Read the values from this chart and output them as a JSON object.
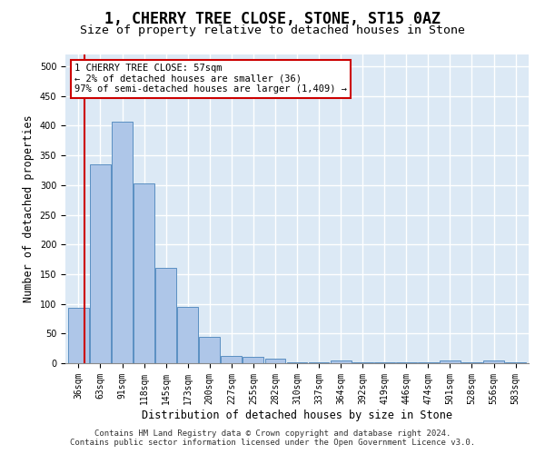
{
  "title": "1, CHERRY TREE CLOSE, STONE, ST15 0AZ",
  "subtitle": "Size of property relative to detached houses in Stone",
  "xlabel": "Distribution of detached houses by size in Stone",
  "ylabel": "Number of detached properties",
  "categories": [
    "36sqm",
    "63sqm",
    "91sqm",
    "118sqm",
    "145sqm",
    "173sqm",
    "200sqm",
    "227sqm",
    "255sqm",
    "282sqm",
    "310sqm",
    "337sqm",
    "364sqm",
    "392sqm",
    "419sqm",
    "446sqm",
    "474sqm",
    "501sqm",
    "528sqm",
    "556sqm",
    "583sqm"
  ],
  "values": [
    93,
    335,
    407,
    303,
    160,
    95,
    44,
    13,
    10,
    7,
    2,
    1,
    5,
    2,
    1,
    1,
    1,
    4,
    1,
    4,
    1
  ],
  "bar_color": "#aec6e8",
  "bar_edge_color": "#5a8fc2",
  "highlight_line_color": "#cc0000",
  "annotation_text": "1 CHERRY TREE CLOSE: 57sqm\n← 2% of detached houses are smaller (36)\n97% of semi-detached houses are larger (1,409) →",
  "annotation_box_color": "#ffffff",
  "annotation_box_edge_color": "#cc0000",
  "footer_line1": "Contains HM Land Registry data © Crown copyright and database right 2024.",
  "footer_line2": "Contains public sector information licensed under the Open Government Licence v3.0.",
  "ylim": [
    0,
    520
  ],
  "yticks": [
    0,
    50,
    100,
    150,
    200,
    250,
    300,
    350,
    400,
    450,
    500
  ],
  "background_color": "#dce9f5",
  "grid_color": "#ffffff",
  "title_fontsize": 12,
  "subtitle_fontsize": 9.5,
  "tick_fontsize": 7,
  "label_fontsize": 8.5
}
